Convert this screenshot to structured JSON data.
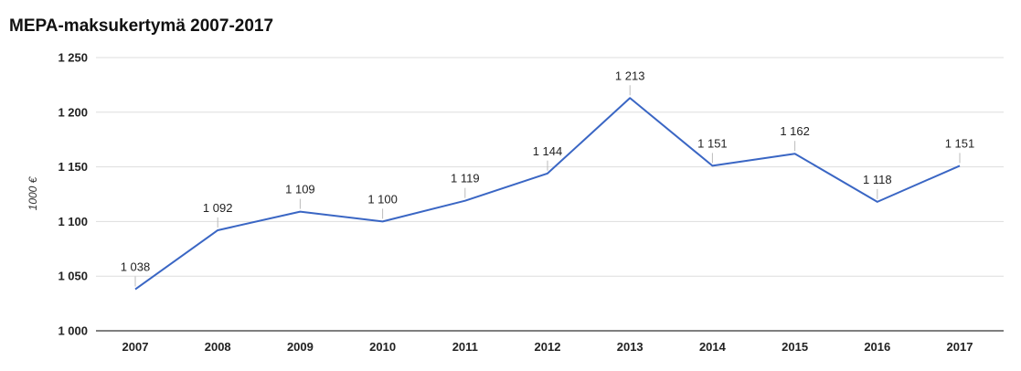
{
  "chart_data": {
    "type": "line",
    "title": "MEPA-maksukertymä 2007-2017",
    "ylabel": "1000 €",
    "xlabel": "",
    "x": [
      "2007",
      "2008",
      "2009",
      "2010",
      "2011",
      "2012",
      "2013",
      "2014",
      "2015",
      "2016",
      "2017"
    ],
    "values": [
      1038,
      1092,
      1109,
      1100,
      1119,
      1144,
      1213,
      1151,
      1162,
      1118,
      1151
    ],
    "data_labels": [
      "1 038",
      "1 092",
      "1 109",
      "1 100",
      "1 119",
      "1 144",
      "1 213",
      "1 151",
      "1 162",
      "1 118",
      "1 151"
    ],
    "ylim": [
      1000,
      1250
    ],
    "yticks": [
      1000,
      1050,
      1100,
      1150,
      1200,
      1250
    ],
    "ytick_labels": [
      "1 000",
      "1 050",
      "1 100",
      "1 150",
      "1 200",
      "1 250"
    ],
    "grid": true,
    "legend": "none",
    "line_color": "#3a66c4",
    "grid_color": "#dddddd"
  }
}
